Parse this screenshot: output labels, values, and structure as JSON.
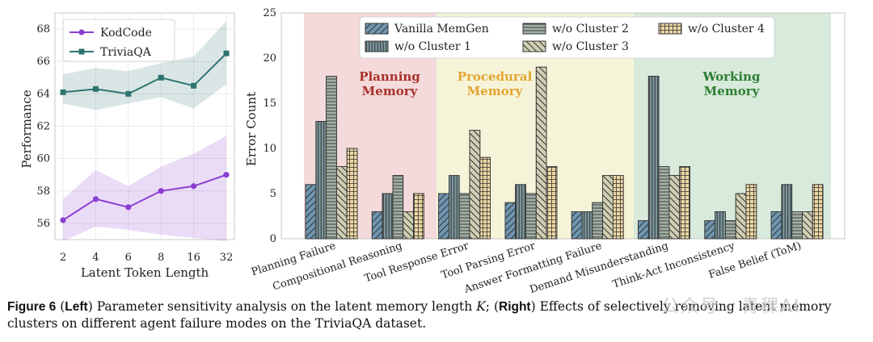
{
  "caption": {
    "label": "Figure 6",
    "left_tag": "Left",
    "left_text": "Parameter sensitivity analysis on the latent memory length",
    "symbol": "K",
    "right_tag": "Right",
    "right_text": "Effects of selectively removing latent memory clusters on different agent failure modes on the TriviaQA dataset."
  },
  "watermark": "公众号 · 青稞AI",
  "colors": {
    "kodcode": "#8a3fd1",
    "triviaqa": "#2d7470",
    "planning_bg": "#f4dada",
    "procedural_bg": "#f6f4d8",
    "working_bg": "#d7eadb",
    "planning_text": "#a8322c",
    "procedural_text": "#e2a530",
    "working_text": "#2e7d32"
  },
  "chart_data": [
    {
      "type": "line",
      "x": [
        "2",
        "4",
        "6",
        "8",
        "16",
        "32"
      ],
      "xlabel": "Latent Token Length",
      "ylabel": "Performance",
      "ylim": [
        55.0,
        69.0
      ],
      "yticks": [
        56,
        58,
        60,
        62,
        64,
        66,
        68
      ],
      "grid": true,
      "legend": "top-left",
      "series": [
        {
          "name": "KodCode",
          "marker": "circle",
          "color": "#8a3fd1",
          "values": [
            56.2,
            57.5,
            57.0,
            58.0,
            58.3,
            59.0
          ],
          "band_low": [
            54.9,
            55.8,
            55.6,
            55.3,
            55.1,
            54.9
          ],
          "band_high": [
            57.5,
            59.3,
            58.3,
            59.5,
            60.3,
            61.4
          ]
        },
        {
          "name": "TriviaQA",
          "marker": "square",
          "color": "#2d7470",
          "values": [
            64.1,
            64.3,
            64.0,
            65.0,
            64.5,
            66.5
          ],
          "band_low": [
            63.4,
            63.0,
            63.4,
            63.8,
            63.1,
            64.6
          ],
          "band_high": [
            65.2,
            65.6,
            65.4,
            65.9,
            66.3,
            68.5
          ]
        }
      ]
    },
    {
      "type": "bar",
      "ylabel": "Error Count",
      "xlabel": "",
      "ylim": [
        0,
        25
      ],
      "yticks": [
        0,
        5,
        10,
        15,
        20,
        25
      ],
      "legend": "top-center",
      "categories": [
        "Planning Failure",
        "Compositional Reasoning",
        "Tool Response Error",
        "Tool Parsing Error",
        "Answer Formatting Failure",
        "Demand Misunderstanding",
        "Think-Act Inconsistency",
        "False Belief (ToM)"
      ],
      "series": [
        {
          "name": "Vanilla MemGen",
          "color": "#6f96b0",
          "hatch": "diag",
          "values": [
            6,
            3,
            5,
            4,
            3,
            2,
            2,
            3
          ]
        },
        {
          "name": "w/o Cluster 1",
          "color": "#7a969c",
          "hatch": "vert",
          "values": [
            13,
            5,
            7,
            6,
            3,
            18,
            3,
            6
          ]
        },
        {
          "name": "w/o Cluster 2",
          "color": "#a2b0a6",
          "hatch": "horiz",
          "values": [
            18,
            7,
            5,
            5,
            4,
            8,
            2,
            3
          ]
        },
        {
          "name": "w/o Cluster 3",
          "color": "#cfcfb3",
          "hatch": "back",
          "values": [
            8,
            3,
            12,
            19,
            7,
            7,
            5,
            3
          ]
        },
        {
          "name": "w/o Cluster 4",
          "color": "#ecd6a3",
          "hatch": "grid",
          "values": [
            10,
            5,
            9,
            8,
            7,
            8,
            6,
            6
          ]
        }
      ],
      "regions": [
        {
          "name": "Planning Memory",
          "line1": "Planning",
          "line2": "Memory",
          "from_category": 0,
          "to_category": 1,
          "color": "#f4dada",
          "text_color": "#a8322c"
        },
        {
          "name": "Procedural Memory",
          "line1": "Procedural",
          "line2": "Memory",
          "from_category": 2,
          "to_category": 4,
          "color": "#f6f4d8",
          "text_color": "#e2a530"
        },
        {
          "name": "Working Memory",
          "line1": "Working",
          "line2": "Memory",
          "from_category": 5,
          "to_category": 7,
          "color": "#d7eadb",
          "text_color": "#2e7d32"
        }
      ]
    }
  ]
}
